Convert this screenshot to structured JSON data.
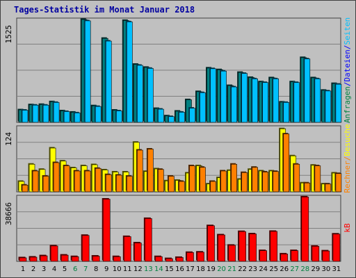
{
  "title": "Tages-Statistik im Monat Januar 2018",
  "chart_data": [
    {
      "type": "bar",
      "panel": "top",
      "y_axis_max_label": "1525",
      "ylim": [
        0,
        1525
      ],
      "categories": [
        "1",
        "2",
        "3",
        "4",
        "5",
        "6",
        "7",
        "8",
        "9",
        "10",
        "11",
        "12",
        "13",
        "14",
        "15",
        "16",
        "17",
        "18",
        "19",
        "20",
        "21",
        "22",
        "23",
        "24",
        "25",
        "26",
        "27",
        "28",
        "29",
        "30",
        "31"
      ],
      "weekend_days": [
        "6",
        "7",
        "13",
        "14",
        "20",
        "21",
        "27",
        "28"
      ],
      "series": [
        {
          "name": "Anfragen",
          "values": [
            185,
            260,
            265,
            305,
            170,
            150,
            1525,
            245,
            1245,
            180,
            1510,
            860,
            815,
            205,
            95,
            165,
            335,
            455,
            805,
            780,
            545,
            740,
            665,
            600,
            660,
            300,
            600,
            960,
            660,
            475,
            575
          ]
        },
        {
          "name": "Dateien",
          "values": [
            180,
            255,
            255,
            295,
            160,
            140,
            1505,
            235,
            1205,
            170,
            1490,
            845,
            800,
            195,
            85,
            150,
            210,
            440,
            795,
            760,
            525,
            725,
            645,
            590,
            645,
            295,
            590,
            940,
            645,
            465,
            565
          ]
        }
      ],
      "y_labels": [
        {
          "text": "Anfragen",
          "color": "#008040"
        },
        {
          "text": "/",
          "color": "#0000ff"
        },
        {
          "text": "Dateien",
          "color": "#0000ff"
        },
        {
          "text": "/",
          "color": "#0000ff"
        },
        {
          "text": "Seiten",
          "color": "#00c0ff"
        }
      ],
      "colors": {
        "Anfragen": "#008080",
        "Dateien": "#00c0ff"
      }
    },
    {
      "type": "bar",
      "panel": "middle",
      "y_axis_max_label": "124",
      "ylim": [
        0,
        124
      ],
      "categories": [
        "1",
        "2",
        "3",
        "4",
        "5",
        "6",
        "7",
        "8",
        "9",
        "10",
        "11",
        "12",
        "13",
        "14",
        "15",
        "16",
        "17",
        "18",
        "19",
        "20",
        "21",
        "22",
        "23",
        "24",
        "25",
        "26",
        "27",
        "28",
        "29",
        "30",
        "31"
      ],
      "series": [
        {
          "name": "Besuche",
          "values": [
            20,
            53,
            43,
            84,
            59,
            46,
            50,
            52,
            42,
            38,
            38,
            95,
            39,
            44,
            21,
            22,
            36,
            50,
            15,
            27,
            41,
            24,
            43,
            40,
            40,
            121,
            69,
            17,
            51,
            15,
            36
          ]
        },
        {
          "name": "Rechner",
          "values": [
            13,
            40,
            30,
            56,
            50,
            40,
            40,
            45,
            33,
            32,
            30,
            80,
            82,
            43,
            30,
            20,
            50,
            47,
            20,
            40,
            53,
            37,
            47,
            38,
            39,
            111,
            53,
            17,
            50,
            15,
            35
          ]
        }
      ],
      "y_labels": [
        {
          "text": "Rechner",
          "color": "#ff8000"
        },
        {
          "text": "/",
          "color": "#ff8000"
        },
        {
          "text": "Besuche",
          "color": "#ffff00"
        }
      ],
      "colors": {
        "Besuche": "#ffff00",
        "Rechner": "#ff8000"
      }
    },
    {
      "type": "bar",
      "panel": "bottom",
      "y_axis_max_label": "38666",
      "ylim": [
        0,
        38666
      ],
      "categories": [
        "1",
        "2",
        "3",
        "4",
        "5",
        "6",
        "7",
        "8",
        "9",
        "10",
        "11",
        "12",
        "13",
        "14",
        "15",
        "16",
        "17",
        "18",
        "19",
        "20",
        "21",
        "22",
        "23",
        "24",
        "25",
        "26",
        "27",
        "28",
        "29",
        "30",
        "31"
      ],
      "series": [
        {
          "name": "kB",
          "values": [
            2100,
            2500,
            3300,
            9200,
            3700,
            2800,
            15500,
            3100,
            37200,
            2800,
            14800,
            11000,
            25600,
            2800,
            1600,
            2300,
            5300,
            5500,
            21300,
            15800,
            9600,
            17800,
            16400,
            6400,
            17900,
            4400,
            6400,
            38500,
            9000,
            6200,
            16300
          ]
        }
      ],
      "y_labels": [
        {
          "text": "kB",
          "color": "#ff0000"
        }
      ],
      "colors": {
        "kB": "#ff0000"
      }
    }
  ],
  "colors": {
    "panel_bg": "#c0c0c0",
    "grid": "#808080",
    "title": "#0000a0",
    "weekday_label": "#000000",
    "weekend_label": "#008040"
  }
}
